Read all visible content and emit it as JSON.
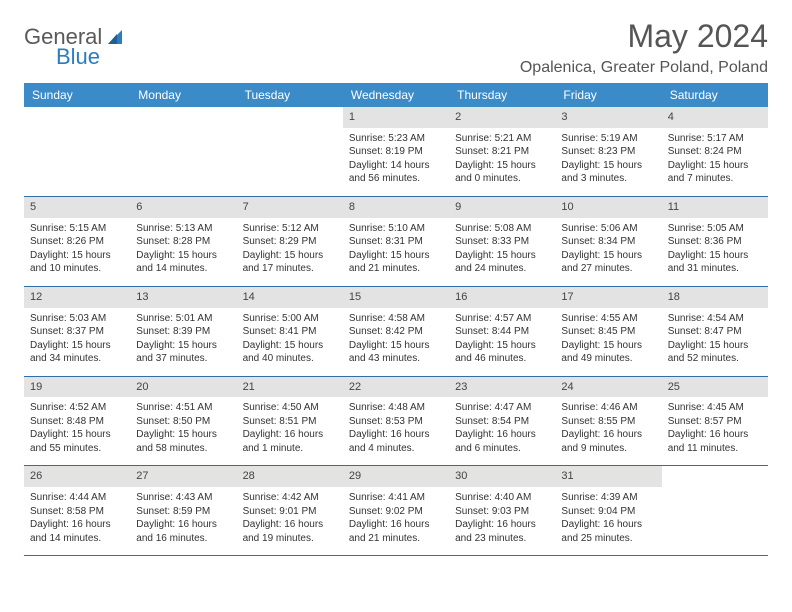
{
  "logo": {
    "text1": "General",
    "text2": "Blue"
  },
  "title": "May 2024",
  "location": "Opalenica, Greater Poland, Poland",
  "colors": {
    "header_bg": "#3b8bc9",
    "header_text": "#ffffff",
    "daynum_bg": "#e3e3e3",
    "row_border": "#2f6ea8",
    "logo_gray": "#5a5a5a",
    "logo_blue": "#2b7cc0"
  },
  "weekdays": [
    "Sunday",
    "Monday",
    "Tuesday",
    "Wednesday",
    "Thursday",
    "Friday",
    "Saturday"
  ],
  "weeks": [
    [
      {
        "empty": true
      },
      {
        "empty": true
      },
      {
        "empty": true
      },
      {
        "day": "1",
        "sunrise": "Sunrise: 5:23 AM",
        "sunset": "Sunset: 8:19 PM",
        "daylight": "Daylight: 14 hours and 56 minutes."
      },
      {
        "day": "2",
        "sunrise": "Sunrise: 5:21 AM",
        "sunset": "Sunset: 8:21 PM",
        "daylight": "Daylight: 15 hours and 0 minutes."
      },
      {
        "day": "3",
        "sunrise": "Sunrise: 5:19 AM",
        "sunset": "Sunset: 8:23 PM",
        "daylight": "Daylight: 15 hours and 3 minutes."
      },
      {
        "day": "4",
        "sunrise": "Sunrise: 5:17 AM",
        "sunset": "Sunset: 8:24 PM",
        "daylight": "Daylight: 15 hours and 7 minutes."
      }
    ],
    [
      {
        "day": "5",
        "sunrise": "Sunrise: 5:15 AM",
        "sunset": "Sunset: 8:26 PM",
        "daylight": "Daylight: 15 hours and 10 minutes."
      },
      {
        "day": "6",
        "sunrise": "Sunrise: 5:13 AM",
        "sunset": "Sunset: 8:28 PM",
        "daylight": "Daylight: 15 hours and 14 minutes."
      },
      {
        "day": "7",
        "sunrise": "Sunrise: 5:12 AM",
        "sunset": "Sunset: 8:29 PM",
        "daylight": "Daylight: 15 hours and 17 minutes."
      },
      {
        "day": "8",
        "sunrise": "Sunrise: 5:10 AM",
        "sunset": "Sunset: 8:31 PM",
        "daylight": "Daylight: 15 hours and 21 minutes."
      },
      {
        "day": "9",
        "sunrise": "Sunrise: 5:08 AM",
        "sunset": "Sunset: 8:33 PM",
        "daylight": "Daylight: 15 hours and 24 minutes."
      },
      {
        "day": "10",
        "sunrise": "Sunrise: 5:06 AM",
        "sunset": "Sunset: 8:34 PM",
        "daylight": "Daylight: 15 hours and 27 minutes."
      },
      {
        "day": "11",
        "sunrise": "Sunrise: 5:05 AM",
        "sunset": "Sunset: 8:36 PM",
        "daylight": "Daylight: 15 hours and 31 minutes."
      }
    ],
    [
      {
        "day": "12",
        "sunrise": "Sunrise: 5:03 AM",
        "sunset": "Sunset: 8:37 PM",
        "daylight": "Daylight: 15 hours and 34 minutes."
      },
      {
        "day": "13",
        "sunrise": "Sunrise: 5:01 AM",
        "sunset": "Sunset: 8:39 PM",
        "daylight": "Daylight: 15 hours and 37 minutes."
      },
      {
        "day": "14",
        "sunrise": "Sunrise: 5:00 AM",
        "sunset": "Sunset: 8:41 PM",
        "daylight": "Daylight: 15 hours and 40 minutes."
      },
      {
        "day": "15",
        "sunrise": "Sunrise: 4:58 AM",
        "sunset": "Sunset: 8:42 PM",
        "daylight": "Daylight: 15 hours and 43 minutes."
      },
      {
        "day": "16",
        "sunrise": "Sunrise: 4:57 AM",
        "sunset": "Sunset: 8:44 PM",
        "daylight": "Daylight: 15 hours and 46 minutes."
      },
      {
        "day": "17",
        "sunrise": "Sunrise: 4:55 AM",
        "sunset": "Sunset: 8:45 PM",
        "daylight": "Daylight: 15 hours and 49 minutes."
      },
      {
        "day": "18",
        "sunrise": "Sunrise: 4:54 AM",
        "sunset": "Sunset: 8:47 PM",
        "daylight": "Daylight: 15 hours and 52 minutes."
      }
    ],
    [
      {
        "day": "19",
        "sunrise": "Sunrise: 4:52 AM",
        "sunset": "Sunset: 8:48 PM",
        "daylight": "Daylight: 15 hours and 55 minutes."
      },
      {
        "day": "20",
        "sunrise": "Sunrise: 4:51 AM",
        "sunset": "Sunset: 8:50 PM",
        "daylight": "Daylight: 15 hours and 58 minutes."
      },
      {
        "day": "21",
        "sunrise": "Sunrise: 4:50 AM",
        "sunset": "Sunset: 8:51 PM",
        "daylight": "Daylight: 16 hours and 1 minute."
      },
      {
        "day": "22",
        "sunrise": "Sunrise: 4:48 AM",
        "sunset": "Sunset: 8:53 PM",
        "daylight": "Daylight: 16 hours and 4 minutes."
      },
      {
        "day": "23",
        "sunrise": "Sunrise: 4:47 AM",
        "sunset": "Sunset: 8:54 PM",
        "daylight": "Daylight: 16 hours and 6 minutes."
      },
      {
        "day": "24",
        "sunrise": "Sunrise: 4:46 AM",
        "sunset": "Sunset: 8:55 PM",
        "daylight": "Daylight: 16 hours and 9 minutes."
      },
      {
        "day": "25",
        "sunrise": "Sunrise: 4:45 AM",
        "sunset": "Sunset: 8:57 PM",
        "daylight": "Daylight: 16 hours and 11 minutes."
      }
    ],
    [
      {
        "day": "26",
        "sunrise": "Sunrise: 4:44 AM",
        "sunset": "Sunset: 8:58 PM",
        "daylight": "Daylight: 16 hours and 14 minutes."
      },
      {
        "day": "27",
        "sunrise": "Sunrise: 4:43 AM",
        "sunset": "Sunset: 8:59 PM",
        "daylight": "Daylight: 16 hours and 16 minutes."
      },
      {
        "day": "28",
        "sunrise": "Sunrise: 4:42 AM",
        "sunset": "Sunset: 9:01 PM",
        "daylight": "Daylight: 16 hours and 19 minutes."
      },
      {
        "day": "29",
        "sunrise": "Sunrise: 4:41 AM",
        "sunset": "Sunset: 9:02 PM",
        "daylight": "Daylight: 16 hours and 21 minutes."
      },
      {
        "day": "30",
        "sunrise": "Sunrise: 4:40 AM",
        "sunset": "Sunset: 9:03 PM",
        "daylight": "Daylight: 16 hours and 23 minutes."
      },
      {
        "day": "31",
        "sunrise": "Sunrise: 4:39 AM",
        "sunset": "Sunset: 9:04 PM",
        "daylight": "Daylight: 16 hours and 25 minutes."
      },
      {
        "empty": true
      }
    ]
  ]
}
